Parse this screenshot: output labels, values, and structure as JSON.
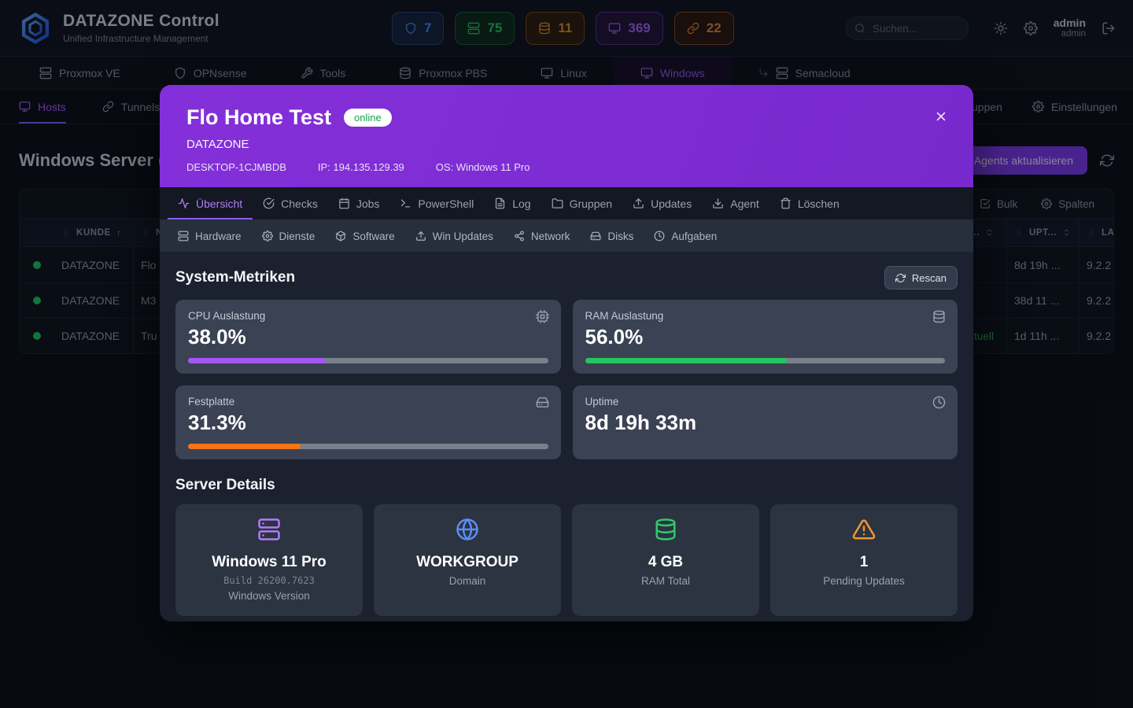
{
  "header": {
    "app_title": "DATAZONE Control",
    "app_subtitle": "Unified Infrastructure Management",
    "search_placeholder": "Suchen...",
    "user_name": "admin",
    "user_role": "admin",
    "badges": [
      {
        "name": "badge-firewalls",
        "icon": "shield-icon",
        "value": "7",
        "color": "#4285f4",
        "bg": "#13233c",
        "border": "#1f4a7e"
      },
      {
        "name": "badge-servers",
        "icon": "server-icon",
        "value": "75",
        "color": "#27c268",
        "bg": "#0f2a1c",
        "border": "#1d5e36"
      },
      {
        "name": "badge-storage",
        "icon": "database-icon",
        "value": "11",
        "color": "#d98b26",
        "bg": "#2b1c0d",
        "border": "#7a4a14"
      },
      {
        "name": "badge-windows",
        "icon": "monitor-icon",
        "value": "369",
        "color": "#a263f2",
        "bg": "#221338",
        "border": "#5b2d94"
      },
      {
        "name": "badge-tunnels",
        "icon": "link-icon",
        "value": "22",
        "color": "#df813a",
        "bg": "#2a180e",
        "border": "#86491e"
      }
    ]
  },
  "main_nav": {
    "items": [
      {
        "label": "Proxmox VE",
        "icon": "server-icon",
        "active": false
      },
      {
        "label": "OPNsense",
        "icon": "shield-icon",
        "active": false
      },
      {
        "label": "Tools",
        "icon": "wrench-icon",
        "active": false
      },
      {
        "label": "Proxmox PBS",
        "icon": "database-icon",
        "active": false
      },
      {
        "label": "Linux",
        "icon": "monitor-icon",
        "active": false
      },
      {
        "label": "Windows",
        "icon": "monitor-icon",
        "active": true
      },
      {
        "label": "Semacloud",
        "icon": "server-icon",
        "active": false,
        "prefix_icon": "corner-down-right-icon"
      }
    ]
  },
  "sub_nav": {
    "left": [
      {
        "label": "Hosts",
        "icon": "monitor-icon",
        "active": true
      },
      {
        "label": "Tunnels",
        "icon": "link-icon",
        "active": false
      }
    ],
    "right": [
      {
        "label": "Gruppen",
        "icon": "users-icon",
        "active": false
      },
      {
        "label": "Einstellungen",
        "icon": "gear-icon",
        "active": false
      }
    ]
  },
  "page": {
    "title": "Windows Server (",
    "update_button": "Agents aktualisieren",
    "table": {
      "bulk_label": "Bulk",
      "columns_label": "Spalten",
      "columns": [
        {
          "label": "KUNDE",
          "sort": "asc"
        },
        {
          "label": "N..."
        },
        {
          "label": "U...",
          "sort": "updown",
          "align": "right"
        },
        {
          "label": "UPT...",
          "sort": "updown"
        },
        {
          "label": "LAS..."
        }
      ],
      "rows": [
        {
          "status_color": "#22c55e",
          "kunde": "DATAZONE",
          "name": "Flo",
          "update_status": "",
          "uptime": "8d 19h ...",
          "last": "9.2.2"
        },
        {
          "status_color": "#22c55e",
          "kunde": "DATAZONE",
          "name": "M3",
          "update_status": "",
          "uptime": "38d 11 ...",
          "last": "9.2.2"
        },
        {
          "status_color": "#22c55e",
          "kunde": "DATAZONE",
          "name": "Tru",
          "update_status": "aktuell",
          "uptime": "1d 11h ...",
          "last": "9.2.2"
        }
      ]
    }
  },
  "modal": {
    "title": "Flo Home Test",
    "status": "online",
    "org": "DATAZONE",
    "hostname": "DESKTOP-1CJMBDB",
    "ip": "IP: 194.135.129.39",
    "os": "OS: Windows 11 Pro",
    "accent_color": "#7c3aed",
    "tabs_row1": [
      {
        "label": "Übersicht",
        "icon": "activity-icon",
        "active": true
      },
      {
        "label": "Checks",
        "icon": "check-circle-icon",
        "active": false
      },
      {
        "label": "Jobs",
        "icon": "calendar-icon",
        "active": false
      },
      {
        "label": "PowerShell",
        "icon": "terminal-icon",
        "active": false
      },
      {
        "label": "Log",
        "icon": "file-text-icon",
        "active": false
      },
      {
        "label": "Gruppen",
        "icon": "folder-icon",
        "active": false
      },
      {
        "label": "Updates",
        "icon": "upload-icon",
        "active": false
      },
      {
        "label": "Agent",
        "icon": "download-icon",
        "active": false
      },
      {
        "label": "Löschen",
        "icon": "trash-icon",
        "active": false
      }
    ],
    "tabs_row2": [
      {
        "label": "Hardware",
        "icon": "server-icon",
        "active": false
      },
      {
        "label": "Dienste",
        "icon": "gear-icon",
        "active": false
      },
      {
        "label": "Software",
        "icon": "package-icon",
        "active": false
      },
      {
        "label": "Win Updates",
        "icon": "upload-icon",
        "active": false
      },
      {
        "label": "Network",
        "icon": "network-icon",
        "active": false
      },
      {
        "label": "Disks",
        "icon": "hard-drive-icon",
        "active": false
      },
      {
        "label": "Aufgaben",
        "icon": "clock-icon",
        "active": false
      }
    ],
    "metrics_title": "System-Metriken",
    "rescan_label": "Rescan",
    "metrics": [
      {
        "label": "CPU Auslastung",
        "value": "38.0%",
        "percent": 38,
        "color": "#a855f7",
        "icon": "cpu-icon"
      },
      {
        "label": "RAM Auslastung",
        "value": "56.0%",
        "percent": 56,
        "color": "#22c55e",
        "icon": "database-icon"
      },
      {
        "label": "Festplatte",
        "value": "31.3%",
        "percent": 31.3,
        "color": "#f97316",
        "icon": "hard-drive-icon"
      },
      {
        "label": "Uptime",
        "value": "8d 19h 33m",
        "percent": null,
        "color": null,
        "icon": "clock-icon"
      }
    ],
    "details_title": "Server Details",
    "details": [
      {
        "value": "Windows 11 Pro",
        "build": "Build 26200.7623",
        "label": "Windows Version",
        "icon": "server-icon",
        "color": "#b07cf7"
      },
      {
        "value": "WORKGROUP",
        "build": null,
        "label": "Domain",
        "icon": "globe-icon",
        "color": "#5b8df5"
      },
      {
        "value": "4 GB",
        "build": null,
        "label": "RAM Total",
        "icon": "database-icon",
        "color": "#2fc96a"
      },
      {
        "value": "1",
        "build": null,
        "label": "Pending Updates",
        "icon": "warning-icon",
        "color": "#f0962f"
      }
    ]
  }
}
